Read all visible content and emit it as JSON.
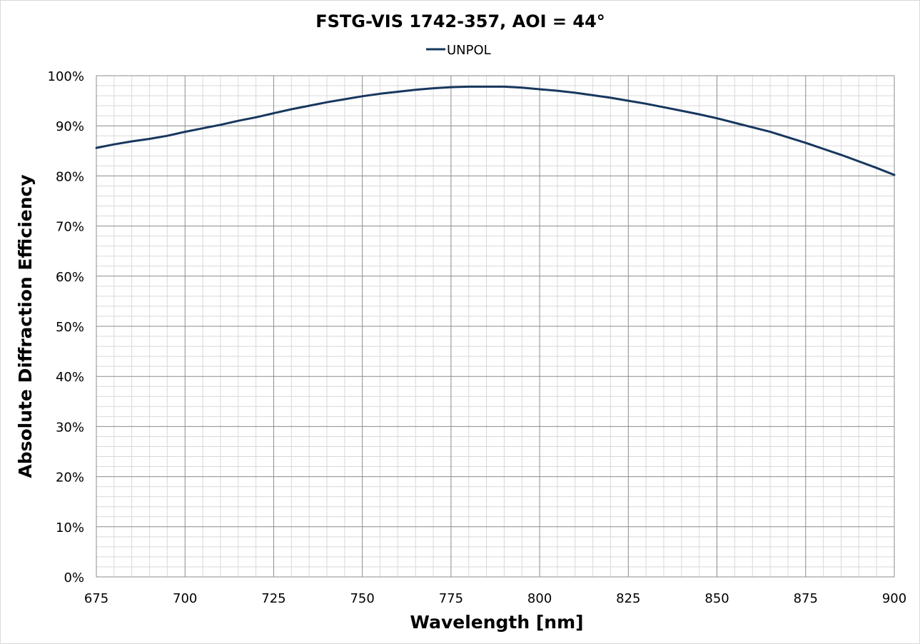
{
  "chart_data": {
    "type": "line",
    "title": "FSTG-VIS 1742-357, AOI = 44°",
    "xlabel": "Wavelength [nm]",
    "ylabel": "Absolute Diffraction Efficiency",
    "xlim": [
      675,
      900
    ],
    "ylim": [
      0,
      100
    ],
    "x_ticks": [
      "675",
      "700",
      "725",
      "750",
      "775",
      "800",
      "825",
      "850",
      "875",
      "900"
    ],
    "y_ticks": [
      "0%",
      "10%",
      "20%",
      "30%",
      "40%",
      "50%",
      "60%",
      "70%",
      "80%",
      "90%",
      "100%"
    ],
    "x_minor_step": 5,
    "y_minor_step": 2,
    "grid": true,
    "legend_position": "top-center",
    "series": [
      {
        "name": "UNPOL",
        "color": "#17375e",
        "x": [
          675,
          680,
          685,
          690,
          695,
          700,
          705,
          710,
          715,
          720,
          725,
          730,
          735,
          740,
          745,
          750,
          755,
          760,
          765,
          770,
          775,
          780,
          785,
          790,
          795,
          800,
          805,
          810,
          815,
          820,
          825,
          830,
          835,
          840,
          845,
          850,
          855,
          860,
          865,
          870,
          875,
          880,
          885,
          890,
          895,
          900
        ],
        "y": [
          85.6,
          86.3,
          86.9,
          87.4,
          88.0,
          88.8,
          89.5,
          90.2,
          91.0,
          91.7,
          92.5,
          93.3,
          94.0,
          94.7,
          95.3,
          95.9,
          96.4,
          96.8,
          97.2,
          97.5,
          97.7,
          97.8,
          97.8,
          97.8,
          97.6,
          97.3,
          97.0,
          96.6,
          96.1,
          95.6,
          95.0,
          94.4,
          93.7,
          93.0,
          92.3,
          91.5,
          90.6,
          89.7,
          88.8,
          87.7,
          86.6,
          85.4,
          84.2,
          82.9,
          81.6,
          80.2
        ]
      }
    ]
  }
}
